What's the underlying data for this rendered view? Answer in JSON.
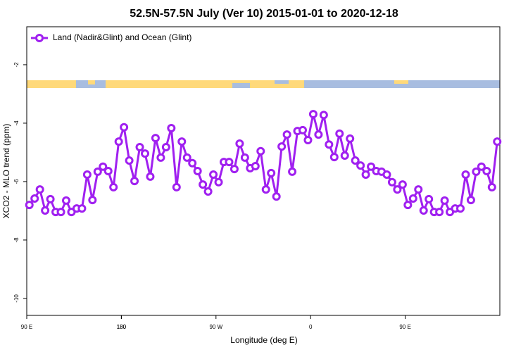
{
  "chart_data": {
    "type": "line",
    "title": "52.5N-57.5N July (Ver 10)   2015-01-01 to 2020-12-18",
    "x_label": "Longitude (deg E)",
    "y_label": "XCO2 - MLO trend (ppm)",
    "x": [
      92.5,
      97.5,
      102.5,
      107.5,
      112.5,
      117.5,
      122.5,
      127.5,
      132.5,
      137.5,
      142.5,
      147.5,
      152.5,
      157.5,
      162.5,
      167.5,
      172.5,
      177.5,
      182.5,
      187.5,
      192.5,
      197.5,
      202.5,
      207.5,
      212.5,
      217.5,
      222.5,
      227.5,
      232.5,
      237.5,
      242.5,
      247.5,
      252.5,
      257.5,
      262.5,
      267.5,
      272.5,
      277.5,
      282.5,
      287.5,
      292.5,
      297.5,
      302.5,
      307.5,
      312.5,
      317.5,
      322.5,
      327.5,
      332.5,
      337.5,
      342.5,
      347.5,
      352.5,
      357.5,
      362.5,
      367.5,
      372.5,
      377.5,
      382.5,
      387.5,
      392.5,
      397.5,
      402.5,
      407.5,
      412.5,
      417.5,
      422.5,
      427.5,
      432.5,
      437.5,
      442.5,
      447.5,
      452.5,
      457.5,
      462.5,
      467.5,
      472.5,
      477.5,
      482.5,
      487.5,
      492.5,
      497.5,
      502.5,
      507.5,
      512.5,
      517.5,
      522.5,
      527.5,
      532.5,
      537.5
    ],
    "series": [
      {
        "name": "Land (Nadir&Glint) and Ocean (Glint)",
        "color": "#a020f0",
        "values": [
          -6.8,
          -6.58,
          -6.27,
          -6.99,
          -6.6,
          -7.04,
          -7.04,
          -6.65,
          -7.04,
          -6.92,
          -6.92,
          -5.76,
          -6.63,
          -5.66,
          -5.49,
          -5.64,
          -6.19,
          -4.63,
          -4.14,
          -5.28,
          -5.98,
          -4.82,
          -5.04,
          -5.83,
          -4.51,
          -5.18,
          -4.82,
          -4.17,
          -6.19,
          -4.63,
          -5.18,
          -5.37,
          -5.64,
          -6.1,
          -6.34,
          -5.76,
          -6.02,
          -5.33,
          -5.33,
          -5.57,
          -4.7,
          -5.18,
          -5.54,
          -5.47,
          -4.96,
          -6.27,
          -5.71,
          -6.51,
          -4.8,
          -4.39,
          -5.66,
          -4.27,
          -4.24,
          -4.58,
          -3.69,
          -4.39,
          -3.72,
          -4.73,
          -5.16,
          -4.36,
          -5.11,
          -4.53,
          -5.28,
          -5.45,
          -5.76,
          -5.49,
          -5.64,
          -5.66,
          -5.76,
          -6.02,
          -6.27,
          -6.1,
          -6.8,
          -6.58,
          -6.27,
          -6.99,
          -6.6,
          -7.04,
          -7.04,
          -6.65,
          -7.04,
          -6.92,
          -6.92,
          -5.76,
          -6.63,
          -5.66,
          -5.49,
          -5.64,
          -6.19,
          -4.63
        ]
      }
    ],
    "xlim": [
      90,
      540
    ],
    "xticks": [
      {
        "value": 90,
        "label": "90 E"
      },
      180,
      {
        "value": 270,
        "label": "90 W"
      },
      {
        "value": 360,
        "label": "0"
      },
      {
        "value": 450,
        "label": "90 E"
      },
      180.0001
    ],
    "ylim": [
      -10.58,
      -0.7
    ],
    "yticks": [
      -2,
      -4,
      -6,
      -8,
      -10
    ],
    "legend_position": "top-left"
  }
}
